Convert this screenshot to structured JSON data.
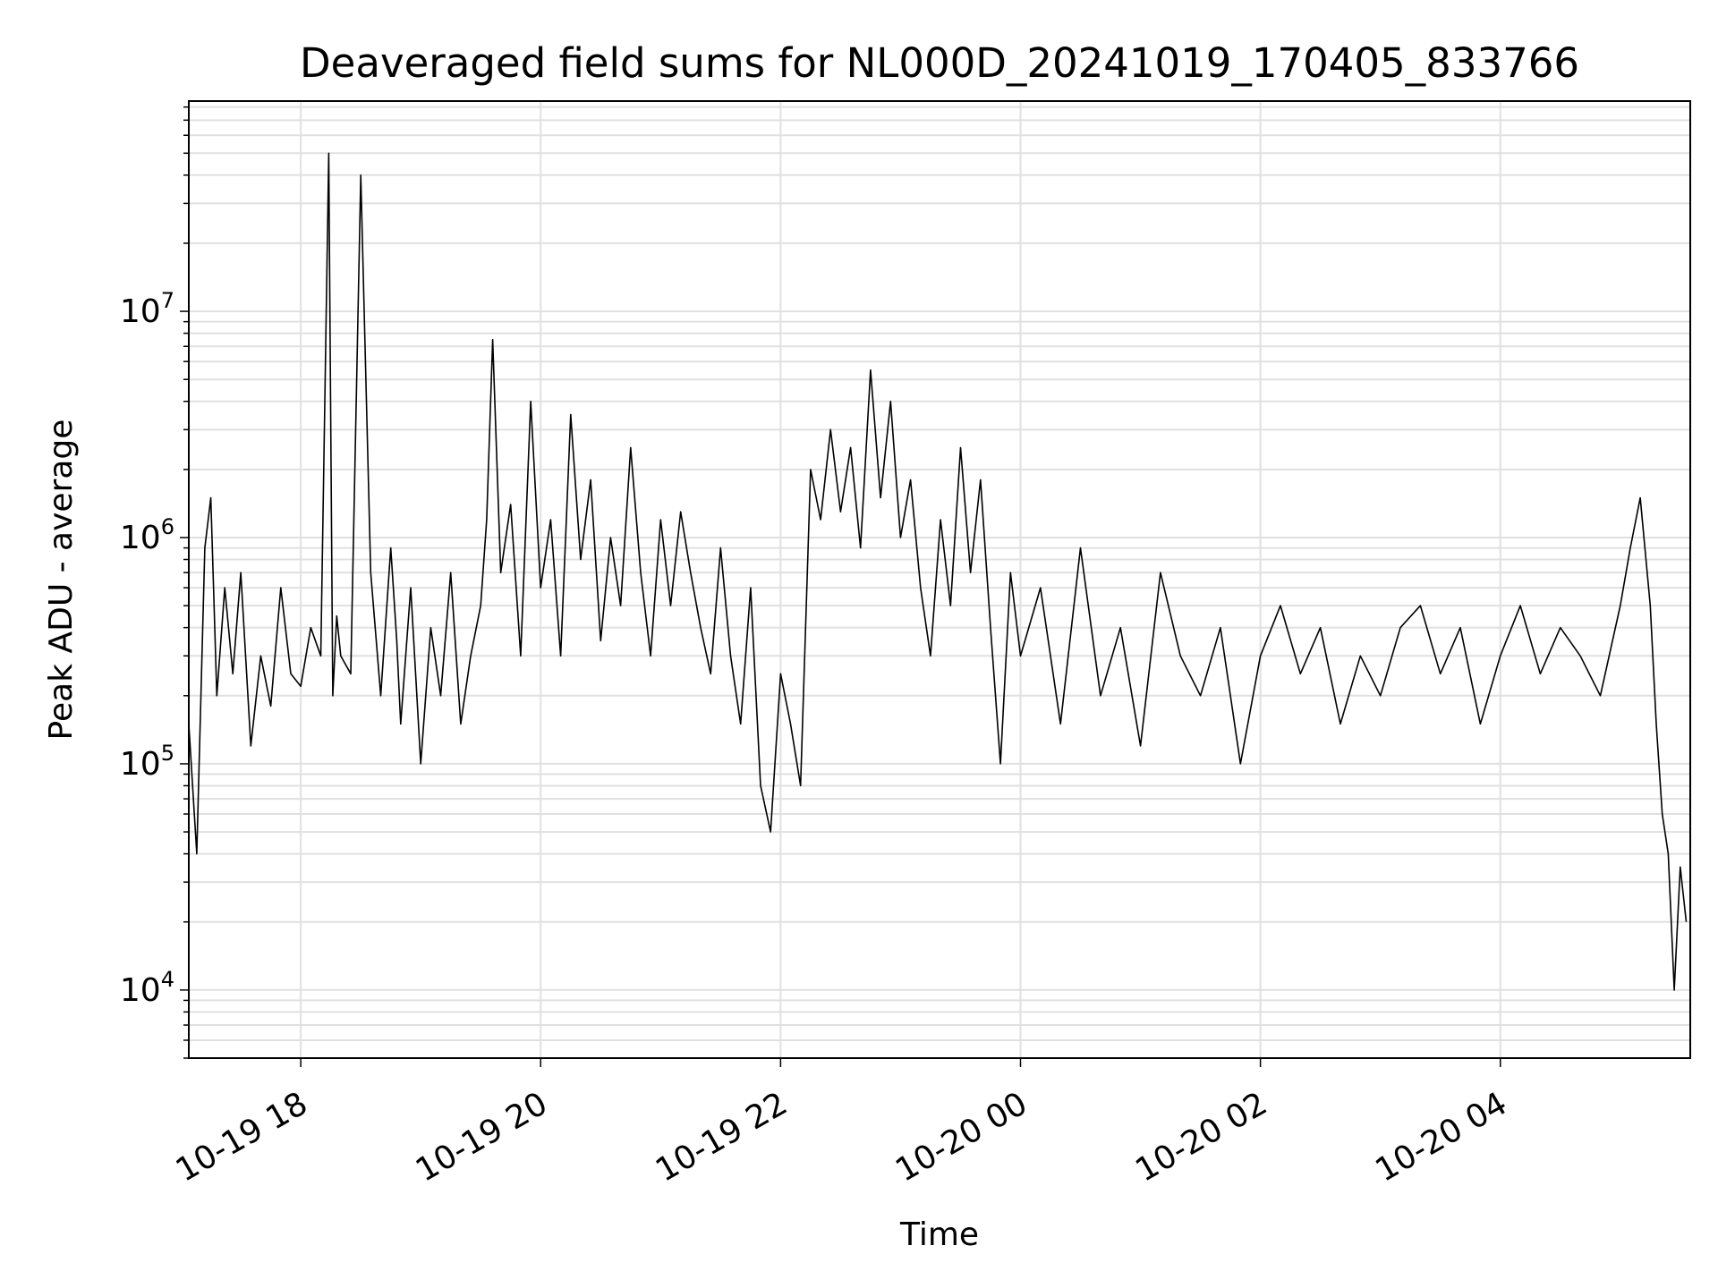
{
  "chart_data": {
    "type": "line",
    "title": "Deaveraged field sums for NL000D_20241019_170405_833766",
    "xlabel": "Time",
    "ylabel": "Peak ADU - average",
    "yscale": "log",
    "ylim": [
      5000,
      85000000
    ],
    "xlim": [
      "2024-10-19 17:04",
      "2024-10-20 05:35"
    ],
    "grid": true,
    "line_color": "#000000",
    "grid_color": "#e0e0e0",
    "x_ticks": [
      {
        "x": "2024-10-19 18:00",
        "label": "10-19 18"
      },
      {
        "x": "2024-10-19 20:00",
        "label": "10-19 20"
      },
      {
        "x": "2024-10-19 22:00",
        "label": "10-19 22"
      },
      {
        "x": "2024-10-20 00:00",
        "label": "10-20 00"
      },
      {
        "x": "2024-10-20 02:00",
        "label": "10-20 02"
      },
      {
        "x": "2024-10-20 04:00",
        "label": "10-20 04"
      }
    ],
    "y_ticks": [
      {
        "value": 10000,
        "base": "10",
        "exp": "4"
      },
      {
        "value": 100000,
        "base": "10",
        "exp": "5"
      },
      {
        "value": 1000000,
        "base": "10",
        "exp": "6"
      },
      {
        "value": 10000000,
        "base": "10",
        "exp": "7"
      }
    ],
    "series": [
      {
        "x": [
          "2024-10-19 17:04",
          "2024-10-19 17:08",
          "2024-10-19 17:12",
          "2024-10-19 17:15",
          "2024-10-19 17:18",
          "2024-10-19 17:22",
          "2024-10-19 17:26",
          "2024-10-19 17:30",
          "2024-10-19 17:35",
          "2024-10-19 17:40",
          "2024-10-19 17:45",
          "2024-10-19 17:50",
          "2024-10-19 17:55",
          "2024-10-19 18:00",
          "2024-10-19 18:05",
          "2024-10-19 18:10",
          "2024-10-19 18:14",
          "2024-10-19 18:16",
          "2024-10-19 18:18",
          "2024-10-19 18:20",
          "2024-10-19 18:25",
          "2024-10-19 18:30",
          "2024-10-19 18:35",
          "2024-10-19 18:40",
          "2024-10-19 18:45",
          "2024-10-19 18:48",
          "2024-10-19 18:50",
          "2024-10-19 18:55",
          "2024-10-19 19:00",
          "2024-10-19 19:05",
          "2024-10-19 19:10",
          "2024-10-19 19:15",
          "2024-10-19 19:20",
          "2024-10-19 19:25",
          "2024-10-19 19:30",
          "2024-10-19 19:33",
          "2024-10-19 19:36",
          "2024-10-19 19:40",
          "2024-10-19 19:45",
          "2024-10-19 19:50",
          "2024-10-19 19:55",
          "2024-10-19 20:00",
          "2024-10-19 20:05",
          "2024-10-19 20:10",
          "2024-10-19 20:15",
          "2024-10-19 20:20",
          "2024-10-19 20:25",
          "2024-10-19 20:30",
          "2024-10-19 20:35",
          "2024-10-19 20:40",
          "2024-10-19 20:45",
          "2024-10-19 20:50",
          "2024-10-19 20:55",
          "2024-10-19 21:00",
          "2024-10-19 21:05",
          "2024-10-19 21:10",
          "2024-10-19 21:15",
          "2024-10-19 21:20",
          "2024-10-19 21:25",
          "2024-10-19 21:30",
          "2024-10-19 21:35",
          "2024-10-19 21:40",
          "2024-10-19 21:45",
          "2024-10-19 21:50",
          "2024-10-19 21:55",
          "2024-10-19 22:00",
          "2024-10-19 22:05",
          "2024-10-19 22:10",
          "2024-10-19 22:15",
          "2024-10-19 22:20",
          "2024-10-19 22:25",
          "2024-10-19 22:30",
          "2024-10-19 22:35",
          "2024-10-19 22:40",
          "2024-10-19 22:45",
          "2024-10-19 22:50",
          "2024-10-19 22:55",
          "2024-10-19 23:00",
          "2024-10-19 23:05",
          "2024-10-19 23:10",
          "2024-10-19 23:15",
          "2024-10-19 23:20",
          "2024-10-19 23:25",
          "2024-10-19 23:30",
          "2024-10-19 23:35",
          "2024-10-19 23:40",
          "2024-10-19 23:45",
          "2024-10-19 23:50",
          "2024-10-19 23:55",
          "2024-10-20 00:00",
          "2024-10-20 00:10",
          "2024-10-20 00:20",
          "2024-10-20 00:30",
          "2024-10-20 00:40",
          "2024-10-20 00:50",
          "2024-10-20 01:00",
          "2024-10-20 01:10",
          "2024-10-20 01:20",
          "2024-10-20 01:30",
          "2024-10-20 01:40",
          "2024-10-20 01:50",
          "2024-10-20 02:00",
          "2024-10-20 02:10",
          "2024-10-20 02:20",
          "2024-10-20 02:30",
          "2024-10-20 02:40",
          "2024-10-20 02:50",
          "2024-10-20 03:00",
          "2024-10-20 03:10",
          "2024-10-20 03:20",
          "2024-10-20 03:30",
          "2024-10-20 03:40",
          "2024-10-20 03:50",
          "2024-10-20 04:00",
          "2024-10-20 04:10",
          "2024-10-20 04:20",
          "2024-10-20 04:30",
          "2024-10-20 04:40",
          "2024-10-20 04:50",
          "2024-10-20 05:00",
          "2024-10-20 05:05",
          "2024-10-20 05:10",
          "2024-10-20 05:15",
          "2024-10-20 05:18",
          "2024-10-20 05:21",
          "2024-10-20 05:24",
          "2024-10-20 05:27",
          "2024-10-20 05:30",
          "2024-10-20 05:33"
        ],
        "y": [
          150000,
          40000,
          900000,
          1500000,
          200000,
          600000,
          250000,
          700000,
          120000,
          300000,
          180000,
          600000,
          250000,
          220000,
          400000,
          300000,
          50000000,
          200000,
          450000,
          300000,
          250000,
          40000000,
          700000,
          200000,
          900000,
          350000,
          150000,
          600000,
          100000,
          400000,
          200000,
          700000,
          150000,
          300000,
          500000,
          1200000,
          7500000,
          700000,
          1400000,
          300000,
          4000000,
          600000,
          1200000,
          300000,
          3500000,
          800000,
          1800000,
          350000,
          1000000,
          500000,
          2500000,
          700000,
          300000,
          1200000,
          500000,
          1300000,
          700000,
          400000,
          250000,
          900000,
          300000,
          150000,
          600000,
          80000,
          50000,
          250000,
          150000,
          80000,
          2000000,
          1200000,
          3000000,
          1300000,
          2500000,
          900000,
          5500000,
          1500000,
          4000000,
          1000000,
          1800000,
          600000,
          300000,
          1200000,
          500000,
          2500000,
          700000,
          1800000,
          400000,
          100000,
          700000,
          300000,
          600000,
          150000,
          900000,
          200000,
          400000,
          120000,
          700000,
          300000,
          200000,
          400000,
          100000,
          300000,
          500000,
          250000,
          400000,
          150000,
          300000,
          200000,
          400000,
          500000,
          250000,
          400000,
          150000,
          300000,
          500000,
          250000,
          400000,
          300000,
          200000,
          500000,
          900000,
          1500000,
          500000,
          150000,
          60000,
          40000,
          10000,
          35000,
          20000
        ]
      }
    ]
  }
}
